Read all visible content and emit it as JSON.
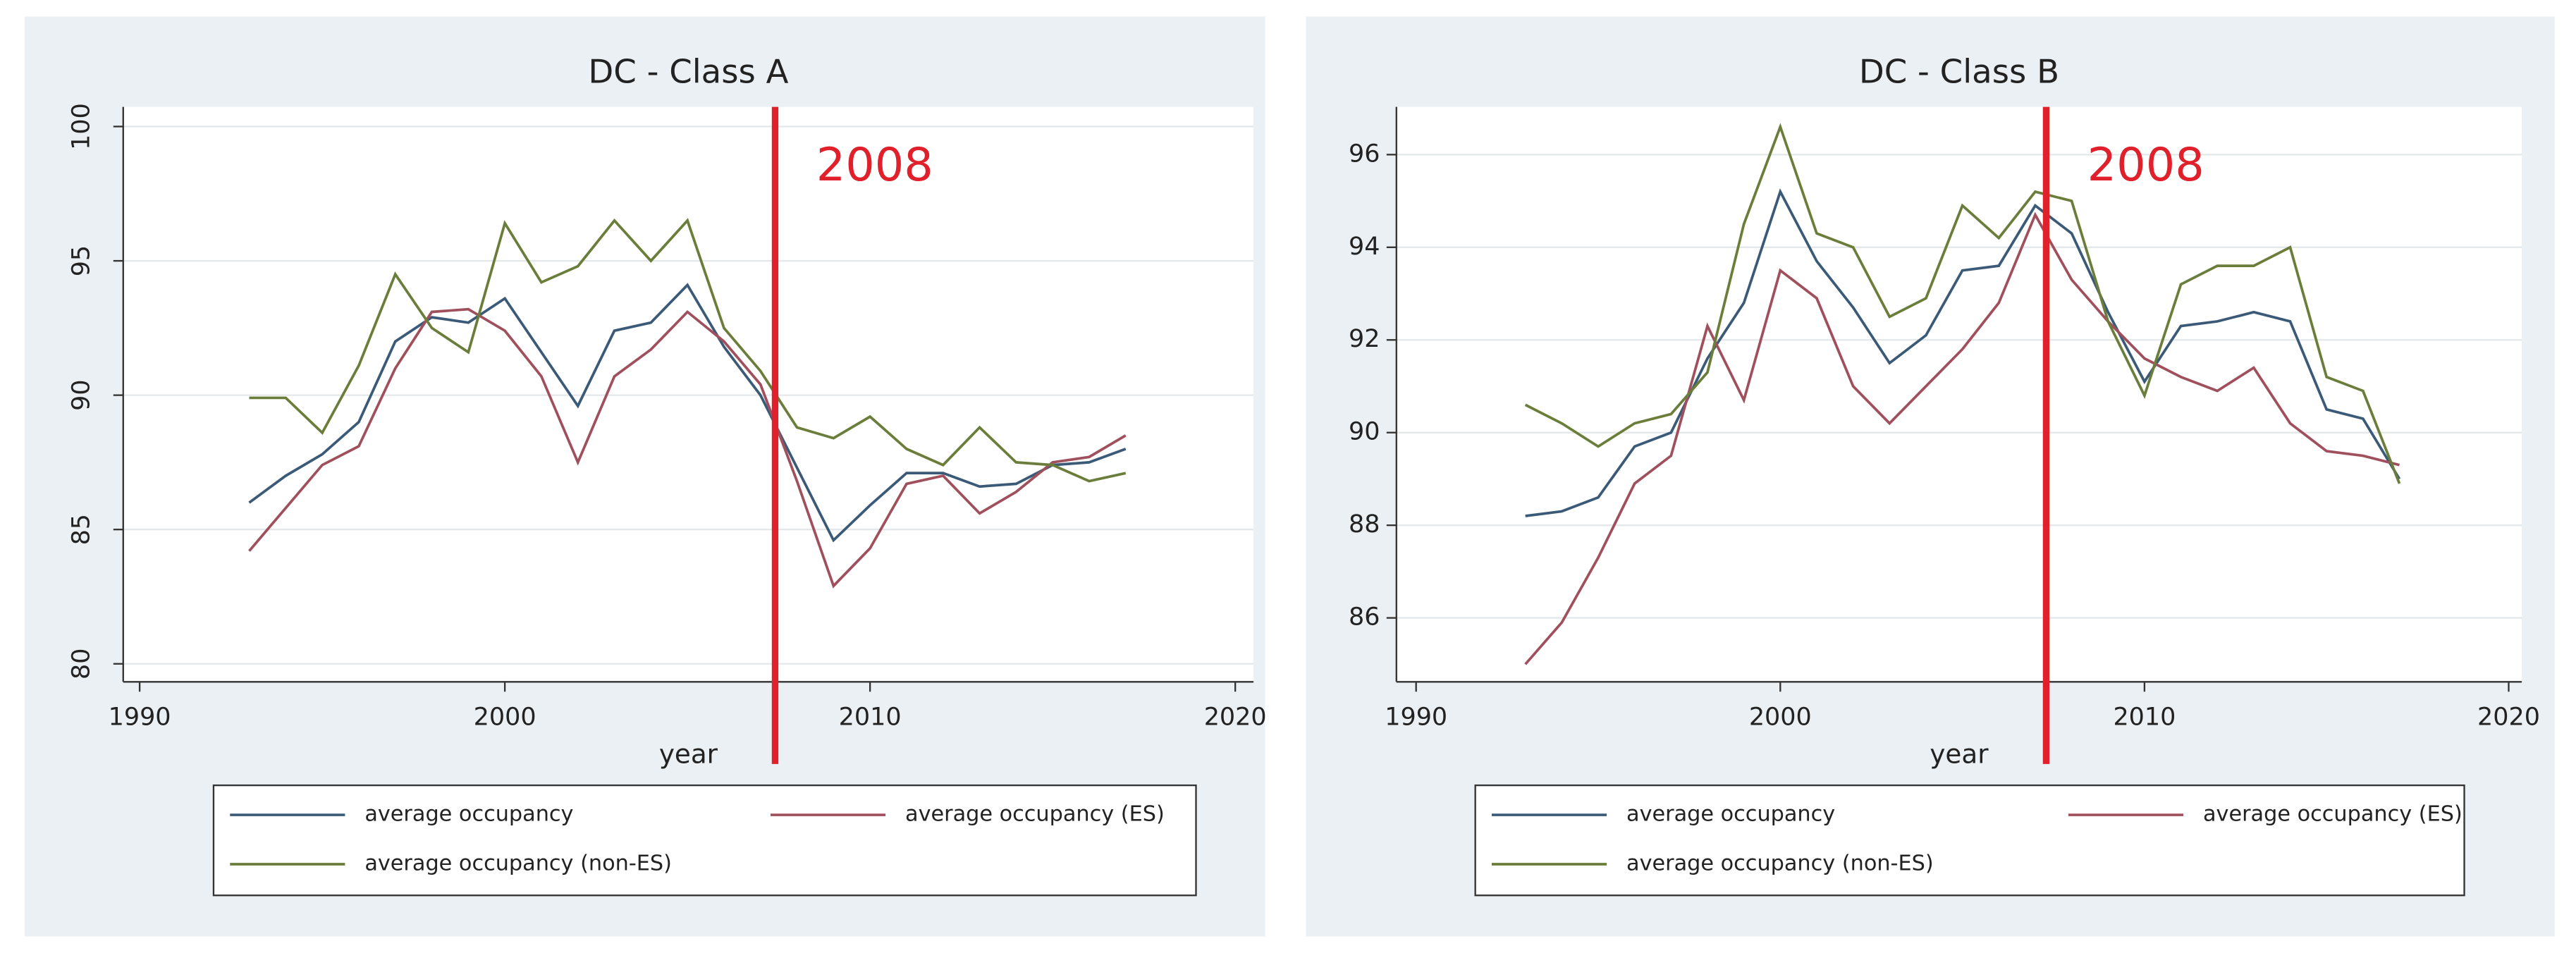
{
  "chart_data": [
    {
      "type": "line",
      "title": "DC - Class A",
      "xlabel": "year",
      "x": [
        1993,
        1994,
        1995,
        1996,
        1997,
        1998,
        1999,
        2000,
        2001,
        2002,
        2003,
        2004,
        2005,
        2006,
        2007,
        2008,
        2009,
        2010,
        2011,
        2012,
        2013,
        2014,
        2015,
        2016,
        2017
      ],
      "series": [
        {
          "name": "average occupancy",
          "color": "#3b5a78",
          "values": [
            86.0,
            87.0,
            87.8,
            89.0,
            92.0,
            92.9,
            92.7,
            93.6,
            91.6,
            89.6,
            92.4,
            92.7,
            94.1,
            91.8,
            90.0,
            87.3,
            84.6,
            85.9,
            87.1,
            87.1,
            86.6,
            86.7,
            87.4,
            87.5,
            88.0
          ]
        },
        {
          "name": "average occupancy (ES)",
          "color": "#a0505c",
          "values": [
            84.2,
            85.8,
            87.4,
            88.1,
            91.0,
            93.1,
            93.2,
            92.4,
            90.7,
            87.5,
            90.7,
            91.7,
            93.1,
            92.0,
            90.4,
            86.8,
            82.9,
            84.3,
            86.7,
            87.0,
            85.6,
            86.4,
            87.5,
            87.7,
            88.5
          ]
        },
        {
          "name": "average occupancy (non-ES)",
          "color": "#6b7d3a",
          "values": [
            89.9,
            89.9,
            88.6,
            91.1,
            94.5,
            92.5,
            91.6,
            96.4,
            94.2,
            94.8,
            96.5,
            95.0,
            96.5,
            92.5,
            90.9,
            88.8,
            88.4,
            89.2,
            88.0,
            87.4,
            88.8,
            87.5,
            87.4,
            86.8,
            87.1
          ]
        }
      ],
      "xlim": [
        1989.55,
        2020.5
      ],
      "xticks": [
        1990,
        2000,
        2010,
        2020
      ],
      "ylim": [
        79.33,
        100.73
      ],
      "yticks": [
        80,
        85,
        90,
        95,
        100
      ],
      "ytick_rotation": -90,
      "grid": true,
      "vline": {
        "x": 2007.4,
        "label": "2008",
        "color": "#e0202a"
      }
    },
    {
      "type": "line",
      "title": "DC - Class B",
      "xlabel": "year",
      "x": [
        1993,
        1994,
        1995,
        1996,
        1997,
        1998,
        1999,
        2000,
        2001,
        2002,
        2003,
        2004,
        2005,
        2006,
        2007,
        2008,
        2009,
        2010,
        2011,
        2012,
        2013,
        2014,
        2015,
        2016,
        2017
      ],
      "series": [
        {
          "name": "average occupancy",
          "color": "#3b5a78",
          "values": [
            88.2,
            88.3,
            88.6,
            89.7,
            90.0,
            91.6,
            92.8,
            95.2,
            93.7,
            92.7,
            91.5,
            92.1,
            93.5,
            93.6,
            94.9,
            94.3,
            92.6,
            91.1,
            92.3,
            92.4,
            92.6,
            92.4,
            90.5,
            90.3,
            89.0
          ]
        },
        {
          "name": "average occupancy (ES)",
          "color": "#a0505c",
          "values": [
            85.0,
            85.9,
            87.3,
            88.9,
            89.5,
            92.3,
            90.7,
            93.5,
            92.9,
            91.0,
            90.2,
            91.0,
            91.8,
            92.8,
            94.7,
            93.3,
            92.4,
            91.6,
            91.2,
            90.9,
            91.4,
            90.2,
            89.6,
            89.5,
            89.3
          ]
        },
        {
          "name": "average occupancy (non-ES)",
          "color": "#6b7d3a",
          "values": [
            90.6,
            90.2,
            89.7,
            90.2,
            90.4,
            91.3,
            94.5,
            96.6,
            94.3,
            94.0,
            92.5,
            92.9,
            94.9,
            94.2,
            95.2,
            95.0,
            92.4,
            90.8,
            93.2,
            93.6,
            93.6,
            94.0,
            91.2,
            90.9,
            88.9
          ]
        }
      ],
      "xlim": [
        1989.46,
        2020.36
      ],
      "xticks": [
        1990,
        2000,
        2010,
        2020
      ],
      "ylim": [
        84.62,
        97.03
      ],
      "yticks": [
        86,
        88,
        90,
        92,
        94,
        96
      ],
      "ytick_rotation": 0,
      "grid": true,
      "vline": {
        "x": 2007.3,
        "label": "2008",
        "color": "#e0202a"
      }
    }
  ]
}
